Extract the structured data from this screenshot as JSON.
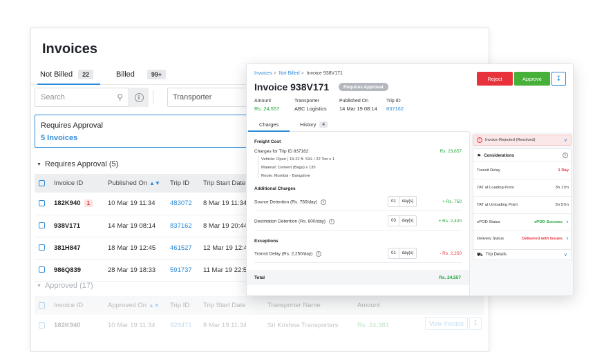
{
  "list": {
    "title": "Invoices",
    "tabs": [
      {
        "label": "Not Billed",
        "count": "22"
      },
      {
        "label": "Billed",
        "count": "99+"
      }
    ],
    "search_placeholder": "Search",
    "transporter_label": "Transporter",
    "requires_card": {
      "title": "Requires Approval",
      "link": "5 Invoices"
    },
    "section_requires": "Requires Approval (5)",
    "section_approved": "Approved (17)",
    "columns": [
      "Invoice ID",
      "Published On",
      "Trip ID",
      "Trip Start Date"
    ],
    "rows": [
      {
        "id": "182K940",
        "badge": "1",
        "published": "10 Mar 19 11:34",
        "trip": "483072",
        "start": "8 Mar 19 11:34"
      },
      {
        "id": "938V171",
        "badge": "",
        "published": "14 Mar 19 08:14",
        "trip": "837162",
        "start": "8 Mar 19 20:44"
      },
      {
        "id": "381H847",
        "badge": "",
        "published": "18 Mar 19 12:45",
        "trip": "461527",
        "start": "12 Mar 19 12:45"
      },
      {
        "id": "986Q839",
        "badge": "",
        "published": "28 Mar 19 18:33",
        "trip": "591737",
        "start": "11 Mar 19 22:56"
      }
    ],
    "approved_columns": [
      "Invoice ID",
      "Approved On",
      "Trip ID",
      "Trip Start Date",
      "Transporter Name",
      "Amount"
    ],
    "approved_rows": [
      {
        "id": "182K940",
        "approved": "10 Mar 19 11:34",
        "trip": "928471",
        "start": "8 Mar 19 11:34",
        "transporter": "Sri Krishna Transporters",
        "amount": "Rs. 24,381"
      }
    ],
    "view_invoice_label": "View Invoice"
  },
  "detail": {
    "breadcrumb": [
      "Invoices",
      "Not Billed",
      "Invoice 938V171"
    ],
    "title": "Invoice 938V171",
    "status": "Requires Approval",
    "reject_label": "Reject",
    "approve_label": "Approve",
    "meta": [
      {
        "key": "Amount",
        "value": "Rs. 24,557"
      },
      {
        "key": "Transporter",
        "value": "ABC Logistics"
      },
      {
        "key": "Published On",
        "value": "14 Mar 19 08:14"
      },
      {
        "key": "Trip ID",
        "value": "837162"
      }
    ],
    "tabs": [
      {
        "label": "Charges",
        "count": ""
      },
      {
        "label": "History",
        "count": "4"
      }
    ],
    "freight": {
      "heading": "Freight Cost",
      "line": "Charges for Trip ID 837162",
      "amount": "Rs. 23,657",
      "vehicle": "Vehicle: Open | 19-22 ft. SXL / 22 Ton x 1",
      "material": "Material: Cement (Bags) x 135",
      "route": "Route: Mumbai - Bangalore"
    },
    "additional": {
      "heading": "Additional Charges",
      "items": [
        {
          "label": "Source Detention (Rs. 750/day)",
          "days": "01",
          "unit": "day(s)",
          "amount": "+ Rs. 750"
        },
        {
          "label": "Destination Detention (Rs. 800/day)",
          "days": "03",
          "unit": "day(s)",
          "amount": "+ Rs. 2,400"
        }
      ]
    },
    "exceptions": {
      "heading": "Exceptions",
      "items": [
        {
          "label": "Transit Delay (Rs. 2,250/day)",
          "days": "01",
          "unit": "day(s)",
          "amount": "- Rs. 2,250"
        }
      ]
    },
    "total": {
      "label": "Total",
      "amount": "Rs. 24,557"
    },
    "side": {
      "rejected_label": "Invoice Rejected (Resolved)",
      "considerations_label": "Considerations",
      "rows": [
        {
          "key": "Transit Delay",
          "value": "1 Day"
        },
        {
          "key": "TAT at Loading Point",
          "value": "3h 17m"
        },
        {
          "key": "TAT at Unloading Point",
          "value": "5h 57m"
        },
        {
          "key": "ePOD Status",
          "value": "ePOD Success"
        },
        {
          "key": "Delivery Status",
          "value": "Delivered with Issues"
        }
      ],
      "trip_details_label": "Trip Details"
    }
  }
}
